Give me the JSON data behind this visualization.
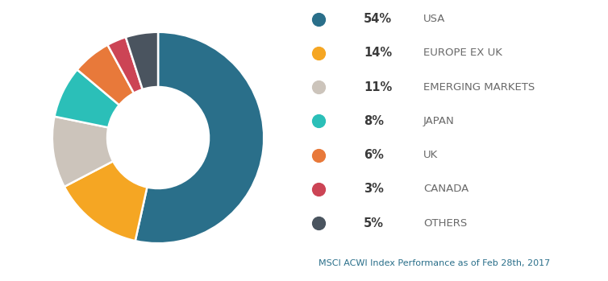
{
  "labels": [
    "USA",
    "EUROPE EX UK",
    "EMERGING MARKETS",
    "JAPAN",
    "UK",
    "CANADA",
    "OTHERS"
  ],
  "values": [
    54,
    14,
    11,
    8,
    6,
    3,
    5
  ],
  "percentages": [
    "54%",
    "14%",
    "11%",
    "8%",
    "6%",
    "3%",
    "5%"
  ],
  "colors": [
    "#2a6f8a",
    "#f5a623",
    "#ccc4bb",
    "#2bbfb8",
    "#e8793a",
    "#cc4455",
    "#4a545f"
  ],
  "donut_width": 0.52,
  "start_angle": 90,
  "background_color": "#ffffff",
  "legend_dot_size": 130,
  "legend_pct_fontsize": 10.5,
  "legend_label_fontsize": 9.5,
  "legend_pct_color": "#3a3a3a",
  "legend_label_color": "#6a6a6a",
  "footnote": "MSCI ACWI Index Performance as of Feb 28th, 2017",
  "footnote_color": "#2a6f8a",
  "footnote_fontsize": 8.0
}
